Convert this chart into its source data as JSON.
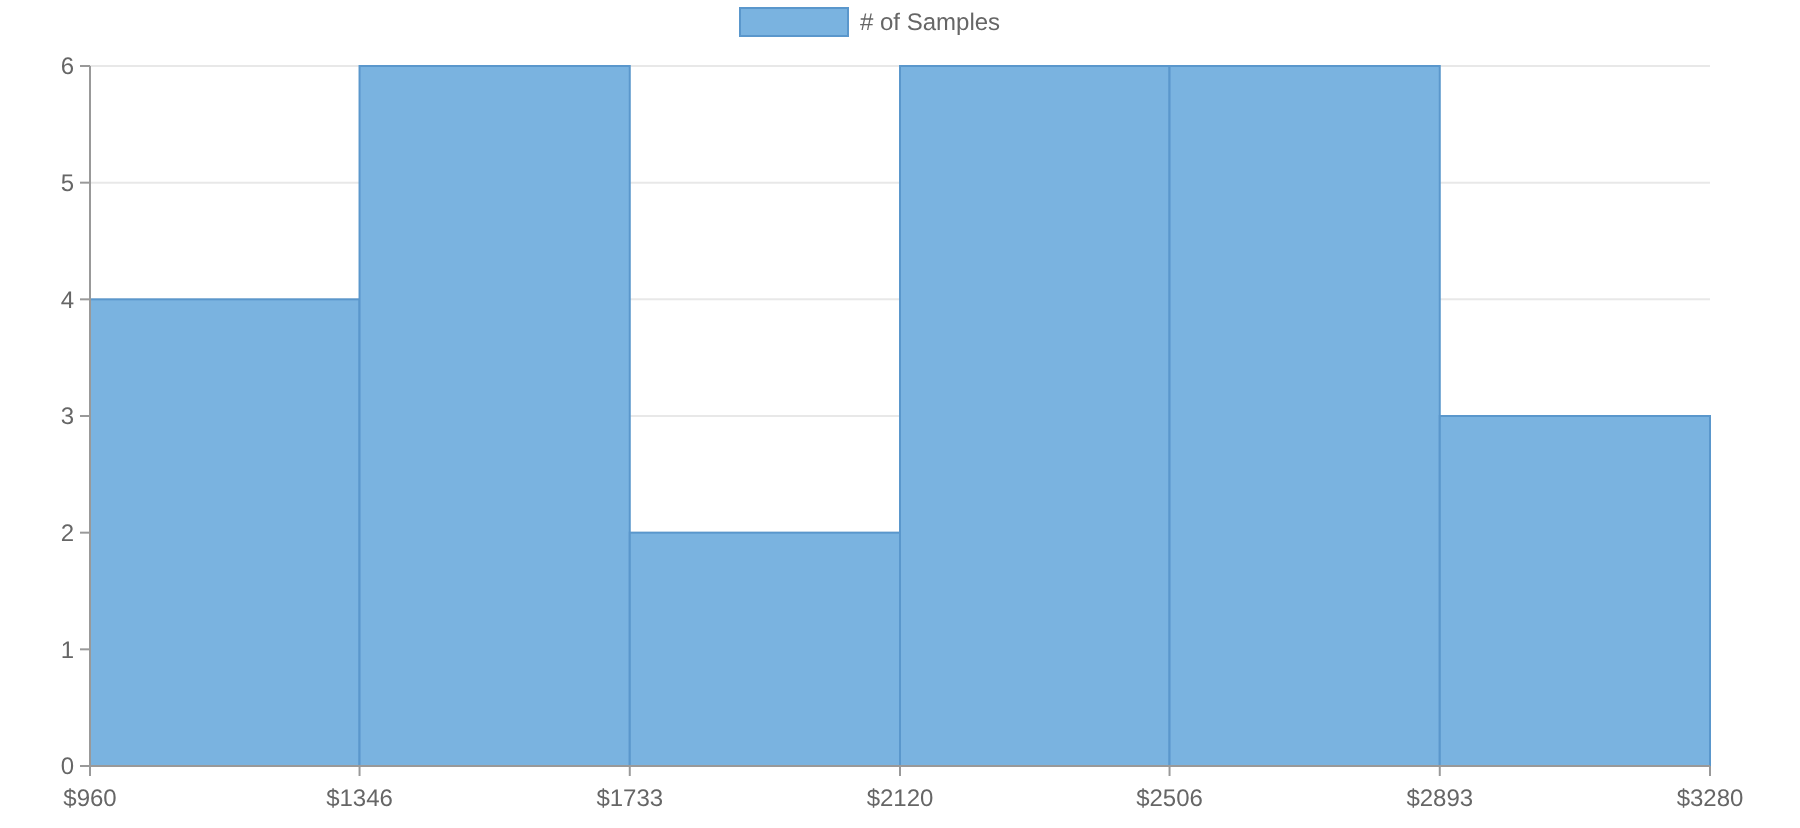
{
  "chart_data": {
    "type": "histogram",
    "bins": [
      960,
      1346,
      1733,
      2120,
      2506,
      2893,
      3280
    ],
    "series": [
      {
        "name": "# of Samples",
        "color": "#7ab3e0",
        "values": [
          4,
          6,
          2,
          6,
          6,
          3
        ]
      }
    ],
    "xlim": [
      960,
      3280
    ],
    "xticks": [
      {
        "value": 960,
        "label": "$960"
      },
      {
        "value": 1346,
        "label": "$1346"
      },
      {
        "value": 1733,
        "label": "$1733"
      },
      {
        "value": 2120,
        "label": "$2120"
      },
      {
        "value": 2506,
        "label": "$2506"
      },
      {
        "value": 2893,
        "label": "$2893"
      },
      {
        "value": 3280,
        "label": "$3280"
      }
    ],
    "ylim": [
      0,
      6
    ],
    "yticks": [
      0,
      1,
      2,
      3,
      4,
      5,
      6
    ],
    "grid": "y",
    "legend": "top"
  }
}
